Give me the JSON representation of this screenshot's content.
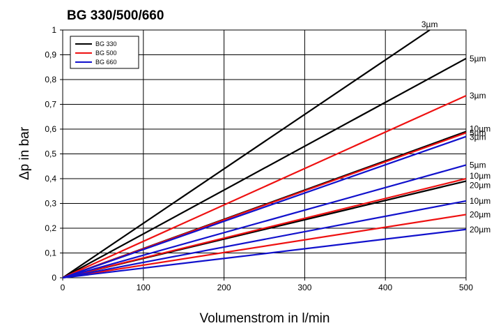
{
  "chart_data": {
    "type": "line",
    "title": "BG 330/500/660",
    "xlabel": "Volumenstrom in l/min",
    "ylabel": "Δp in bar",
    "xlim": [
      0,
      500
    ],
    "ylim": [
      0,
      1
    ],
    "x_ticks": [
      0,
      100,
      200,
      300,
      400,
      500
    ],
    "x_tick_labels": [
      "0",
      "100",
      "200",
      "300",
      "400",
      "500"
    ],
    "y_ticks": [
      0,
      0.1,
      0.2,
      0.3,
      0.4,
      0.5,
      0.6,
      0.7,
      0.8,
      0.9,
      1
    ],
    "y_tick_labels": [
      "0",
      "0,1",
      "0,2",
      "0,3",
      "0,4",
      "0,5",
      "0,6",
      "0,7",
      "0,8",
      "0,9",
      "1"
    ],
    "grid": true,
    "legend_position": "top-left",
    "legend": [
      {
        "name": "BG 330",
        "color": "#000000"
      },
      {
        "name": "BG 500",
        "color": "#ee1111"
      },
      {
        "name": "BG 660",
        "color": "#1111cc"
      }
    ],
    "series": [
      {
        "group": "BG 330",
        "label": "3µm",
        "color": "#000000",
        "x": [
          0,
          455
        ],
        "y": [
          0,
          1.0
        ]
      },
      {
        "group": "BG 330",
        "label": "5µm",
        "color": "#000000",
        "x": [
          0,
          500
        ],
        "y": [
          0,
          0.885
        ]
      },
      {
        "group": "BG 330",
        "label": "10µm",
        "color": "#000000",
        "x": [
          0,
          500
        ],
        "y": [
          0,
          0.59
        ]
      },
      {
        "group": "BG 330",
        "label": "20µm",
        "color": "#000000",
        "x": [
          0,
          500
        ],
        "y": [
          0,
          0.39
        ]
      },
      {
        "group": "BG 500",
        "label": "3µm",
        "color": "#ee1111",
        "x": [
          0,
          500
        ],
        "y": [
          0,
          0.735
        ]
      },
      {
        "group": "BG 500",
        "label": "5µm",
        "color": "#ee1111",
        "x": [
          0,
          500
        ],
        "y": [
          0,
          0.585
        ]
      },
      {
        "group": "BG 500",
        "label": "10µm",
        "color": "#ee1111",
        "x": [
          0,
          500
        ],
        "y": [
          0,
          0.4
        ]
      },
      {
        "group": "BG 500",
        "label": "20µm",
        "color": "#ee1111",
        "x": [
          0,
          500
        ],
        "y": [
          0,
          0.255
        ]
      },
      {
        "group": "BG 660",
        "label": "3µm",
        "color": "#1111cc",
        "x": [
          0,
          500
        ],
        "y": [
          0,
          0.57
        ]
      },
      {
        "group": "BG 660",
        "label": "5µm",
        "color": "#1111cc",
        "x": [
          0,
          500
        ],
        "y": [
          0,
          0.455
        ]
      },
      {
        "group": "BG 660",
        "label": "10µm",
        "color": "#1111cc",
        "x": [
          0,
          500
        ],
        "y": [
          0,
          0.31
        ]
      },
      {
        "group": "BG 660",
        "label": "20µm",
        "color": "#1111cc",
        "x": [
          0,
          500
        ],
        "y": [
          0,
          0.195
        ]
      }
    ]
  }
}
